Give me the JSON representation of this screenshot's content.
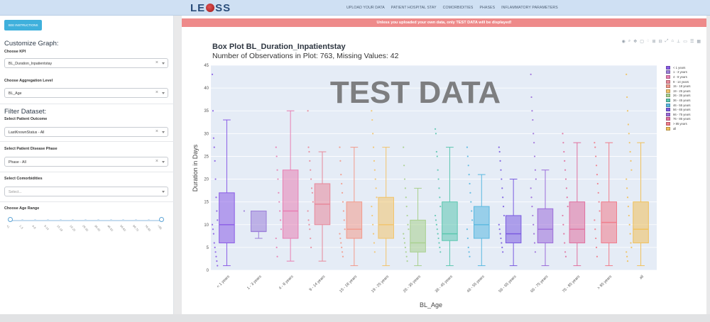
{
  "header": {
    "logo_text": "LEOSS",
    "nav": [
      "UPLOAD YOUR DATA",
      "PATIENT HOSPITAL STAY",
      "COMORBIDITIES",
      "PHASES",
      "INFLAMMATORY PARAMETERS"
    ]
  },
  "sidebar": {
    "instructions_button": "SEE INSTRUCTIONS",
    "customize_title": "Customize Graph:",
    "kpi_label": "Choose KPI",
    "kpi_value": "BL_Duration_Inpatientstay",
    "aggregation_label": "Choose Aggregation Level",
    "aggregation_value": "BL_Age",
    "filter_title": "Filter Dataset:",
    "outcome_label": "Select Patient Outcome",
    "outcome_value": "LastKnownStatus - All",
    "phase_label": "Select Patient Disease Phase",
    "phase_value": "Phase - All",
    "comorbidities_label": "Select Comorbidities",
    "comorbidities_placeholder": "Select...",
    "age_label": "Choose Age Range",
    "age_ticks": [
      "<1",
      "1-3",
      "4-8",
      "9-14",
      "15-18",
      "19-25",
      "26-35",
      "36-45",
      "46-55",
      "56-65",
      "66-75",
      "76-85",
      ">85"
    ]
  },
  "main": {
    "warning": "Unless you uploaded your own data, only TEST DATA will be displayed!",
    "toolbar_icons": [
      "camera-icon",
      "zoom-icon",
      "pan-icon",
      "box-select-icon",
      "lasso-icon",
      "zoom-in-icon",
      "zoom-out-icon",
      "autoscale-icon",
      "reset-axes-icon",
      "spike-lines-icon",
      "hover-closest-icon",
      "hover-compare-icon",
      "plotly-logo-icon"
    ],
    "watermark": "TEST DATA"
  },
  "chart_data": {
    "type": "box",
    "title": "Box Plot BL_Duration_Inpatientstay",
    "subtitle": "Number of Observations in Plot: 763, Missing Values: 42",
    "xlabel": "BL_Age",
    "ylabel": "Duration in Days",
    "ylim": [
      0,
      45
    ],
    "yticks": [
      0,
      5,
      10,
      15,
      20,
      25,
      30,
      35,
      40,
      45
    ],
    "grid": true,
    "legend_position": "right",
    "categories": [
      "< 1 years",
      "1 - 3 years",
      "4 - 8 years",
      "9 - 14 years",
      "15 - 18 years",
      "19 - 25 years",
      "26 - 35 years",
      "36 - 45 years",
      "46 - 55 years",
      "56 - 65 years",
      "66 - 75 years",
      "76 - 85 years",
      "> 85 years",
      "all"
    ],
    "colors": [
      "#8a5ce6",
      "#9b7fd9",
      "#e87fb3",
      "#e8899a",
      "#f29a8b",
      "#f2c46b",
      "#a8d08d",
      "#5cc7b0",
      "#5ab8e0",
      "#7b5ce0",
      "#9b6bd9",
      "#e0709e",
      "#f07b8a",
      "#f0c05a"
    ],
    "boxes": [
      {
        "min": 1,
        "q1": 6,
        "median": 10,
        "q3": 17,
        "max": 33
      },
      {
        "min": 7,
        "q1": 8.5,
        "median": 8.5,
        "q3": 13,
        "max": 13
      },
      {
        "min": 2,
        "q1": 7,
        "median": 13,
        "q3": 22,
        "max": 35
      },
      {
        "min": 2,
        "q1": 10,
        "median": 14.5,
        "q3": 19,
        "max": 26
      },
      {
        "min": 1,
        "q1": 7,
        "median": 9,
        "q3": 15,
        "max": 27
      },
      {
        "min": 1,
        "q1": 7,
        "median": 10,
        "q3": 16,
        "max": 27
      },
      {
        "min": 1,
        "q1": 4,
        "median": 6,
        "q3": 11,
        "max": 18
      },
      {
        "min": 1,
        "q1": 6.5,
        "median": 8,
        "q3": 15,
        "max": 27
      },
      {
        "min": 1,
        "q1": 7,
        "median": 10,
        "q3": 14,
        "max": 21
      },
      {
        "min": 1,
        "q1": 6,
        "median": 8,
        "q3": 12,
        "max": 20
      },
      {
        "min": 1,
        "q1": 6,
        "median": 9,
        "q3": 13.5,
        "max": 22
      },
      {
        "min": 1,
        "q1": 6,
        "median": 9,
        "q3": 15,
        "max": 28
      },
      {
        "min": 1,
        "q1": 6,
        "median": 10.5,
        "q3": 15,
        "max": 28
      },
      {
        "min": 1,
        "q1": 6,
        "median": 9,
        "q3": 15,
        "max": 28
      }
    ],
    "outliers": [
      [
        43,
        35,
        29,
        27,
        24,
        20,
        16,
        13,
        11,
        10,
        9,
        8,
        6,
        5,
        4,
        3,
        2,
        1
      ],
      [
        13
      ],
      [
        27,
        25,
        22,
        20,
        17,
        15,
        13,
        11,
        9,
        7,
        5,
        3
      ],
      [
        35,
        27,
        26,
        24,
        22,
        20,
        18,
        17,
        15,
        13,
        11,
        10,
        9,
        7,
        5
      ],
      [
        27,
        24,
        21,
        19,
        17,
        15,
        13,
        11,
        9,
        8,
        7,
        6,
        5,
        4,
        3
      ],
      [
        35,
        33,
        30,
        27,
        24,
        22,
        20,
        18,
        16,
        14,
        12,
        10,
        8,
        6,
        4
      ],
      [
        27,
        23,
        20,
        18,
        16,
        14,
        12,
        10,
        9,
        8,
        7,
        6,
        5,
        4,
        3,
        2
      ],
      [
        31,
        30,
        26,
        25,
        22,
        20,
        18,
        16,
        14,
        12,
        11,
        10,
        9,
        8,
        7,
        6,
        5,
        4
      ],
      [
        27,
        25,
        23,
        21,
        19,
        17,
        15,
        13,
        11,
        9,
        7,
        5,
        4,
        3
      ],
      [
        27,
        26,
        24,
        22,
        20,
        18,
        16,
        14,
        12,
        10,
        9,
        8,
        7,
        6,
        5,
        4
      ],
      [
        43,
        38,
        35,
        33,
        30,
        28,
        25,
        22,
        20,
        18,
        16,
        14,
        12,
        10,
        8,
        6,
        4
      ],
      [
        30,
        28,
        26,
        24,
        22,
        20,
        18,
        16,
        14,
        12,
        10,
        8,
        6,
        4,
        3
      ],
      [
        28,
        27,
        25,
        23,
        21,
        19,
        17,
        15,
        13,
        11,
        9,
        7,
        5,
        3
      ],
      [
        43,
        38,
        35,
        32,
        30,
        28,
        26,
        24,
        22,
        20,
        18,
        16,
        14,
        12,
        10,
        8,
        6,
        5,
        4,
        3,
        2
      ]
    ]
  }
}
